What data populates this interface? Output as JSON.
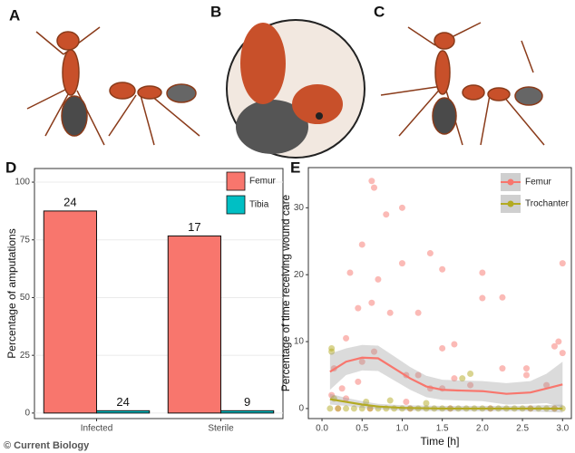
{
  "panel_labels": [
    "A",
    "B",
    "C",
    "D",
    "E"
  ],
  "credit": "© Current Biology",
  "chart_data": [
    {
      "type": "bar",
      "ylabel": "Percentage of amputations",
      "categories": [
        "Infected",
        "Sterile"
      ],
      "series": [
        {
          "name": "Femur",
          "color": "#F8766D",
          "values": [
            87.5,
            76.7
          ],
          "counts": [
            24,
            17
          ]
        },
        {
          "name": "Tibia",
          "color": "#00BFC4",
          "values": [
            1,
            1
          ],
          "counts": [
            24,
            9
          ]
        }
      ],
      "ylim": [
        -2.4,
        105.9
      ],
      "yticks": [
        0,
        25,
        50,
        75,
        100
      ],
      "grid": true
    },
    {
      "type": "scatter",
      "xlabel": "Time [h]",
      "ylabel": "Percentage of time receiving wound care",
      "series": [
        {
          "name": "Femur",
          "color": "#F8766D",
          "x": [
            0.12,
            0.15,
            0.25,
            0.3,
            0.3,
            0.35,
            0.45,
            0.45,
            0.5,
            0.5,
            0.62,
            0.62,
            0.65,
            0.65,
            0.7,
            0.8,
            0.85,
            1.0,
            1.0,
            1.05,
            1.05,
            1.2,
            1.2,
            1.35,
            1.35,
            1.5,
            1.5,
            1.5,
            1.65,
            1.65,
            1.85,
            2.0,
            2.0,
            2.25,
            2.25,
            2.55,
            2.55,
            2.8,
            2.9,
            2.95,
            3.0,
            3.0,
            0.2,
            0.6,
            1.1,
            1.6,
            2.1,
            2.6,
            2.9
          ],
          "values": [
            2,
            6,
            3,
            1.5,
            10.5,
            20.3,
            15,
            4,
            24.5,
            7,
            34,
            15.8,
            33,
            8.5,
            19.3,
            29,
            14.3,
            30,
            21.7,
            5,
            1,
            14.3,
            5,
            23.2,
            3,
            20.8,
            9,
            3,
            9.6,
            4.5,
            3.5,
            20.3,
            16.5,
            16.6,
            6,
            6,
            5,
            3.5,
            9.3,
            10,
            21.7,
            8.3,
            0,
            0,
            0,
            0,
            0,
            0,
            0
          ],
          "smooth": {
            "x": [
              0.1,
              0.3,
              0.5,
              0.7,
              0.9,
              1.1,
              1.3,
              1.5,
              1.7,
              2.0,
              2.3,
              2.6,
              2.8,
              3.0
            ],
            "values": [
              5.5,
              7,
              7.6,
              7.5,
              6,
              4.5,
              3.3,
              2.8,
              2.7,
              2.6,
              2.2,
              2.4,
              3,
              3.6
            ],
            "lower": [
              2.8,
              5,
              5.7,
              5.6,
              4.2,
              2.8,
              1.7,
              1.3,
              1.2,
              1.1,
              0.6,
              0.7,
              0.8,
              0.2
            ],
            "upper": [
              8.2,
              9,
              9.5,
              9.4,
              7.8,
              6.2,
              4.9,
              4.3,
              4.2,
              4.1,
              3.8,
              4.1,
              5.2,
              7
            ]
          }
        },
        {
          "name": "Trochanter",
          "color": "#B3AA22",
          "x": [
            0.1,
            0.2,
            0.3,
            0.4,
            0.5,
            0.6,
            0.7,
            0.8,
            0.9,
            1.0,
            1.1,
            1.2,
            1.3,
            1.4,
            1.5,
            1.6,
            1.7,
            1.8,
            1.9,
            2.0,
            2.1,
            2.2,
            2.3,
            2.4,
            2.5,
            2.6,
            2.7,
            2.8,
            2.9,
            3.0,
            0.12,
            0.12,
            0.15,
            0.55,
            0.85,
            1.75,
            1.85,
            1.3
          ],
          "values": [
            0,
            0,
            0,
            0,
            0,
            0,
            0,
            0,
            0,
            0,
            0,
            0,
            0,
            0,
            0,
            0,
            0,
            0,
            0,
            0,
            0,
            0,
            0,
            0,
            0,
            0,
            0,
            0,
            0,
            0,
            9,
            8.5,
            1.5,
            1,
            1.2,
            4.5,
            5.2,
            0.8
          ],
          "smooth": {
            "x": [
              0.1,
              0.3,
              0.5,
              0.7,
              1.0,
              1.5,
              2.0,
              2.5,
              3.0
            ],
            "values": [
              1.4,
              1.0,
              0.6,
              0.3,
              0.1,
              0,
              0,
              0,
              0
            ],
            "lower": [
              0.6,
              0.4,
              0.1,
              -0.1,
              -0.3,
              -0.4,
              -0.4,
              -0.4,
              -0.6
            ],
            "upper": [
              2.2,
              1.6,
              1.1,
              0.7,
              0.5,
              0.4,
              0.4,
              0.4,
              0.6
            ]
          }
        }
      ],
      "xlim": [
        -0.17,
        3.11
      ],
      "ylim": [
        -1.5,
        36
      ],
      "xticks": [
        {
          "value": 0,
          "label": "0.0"
        },
        0.5,
        {
          "value": 1,
          "label": "1.0"
        },
        1.5,
        {
          "value": 2,
          "label": "2.0"
        },
        2.5,
        {
          "value": 3,
          "label": "3.0"
        }
      ],
      "yticks": [
        0,
        10,
        20,
        30
      ],
      "grid": false
    }
  ]
}
